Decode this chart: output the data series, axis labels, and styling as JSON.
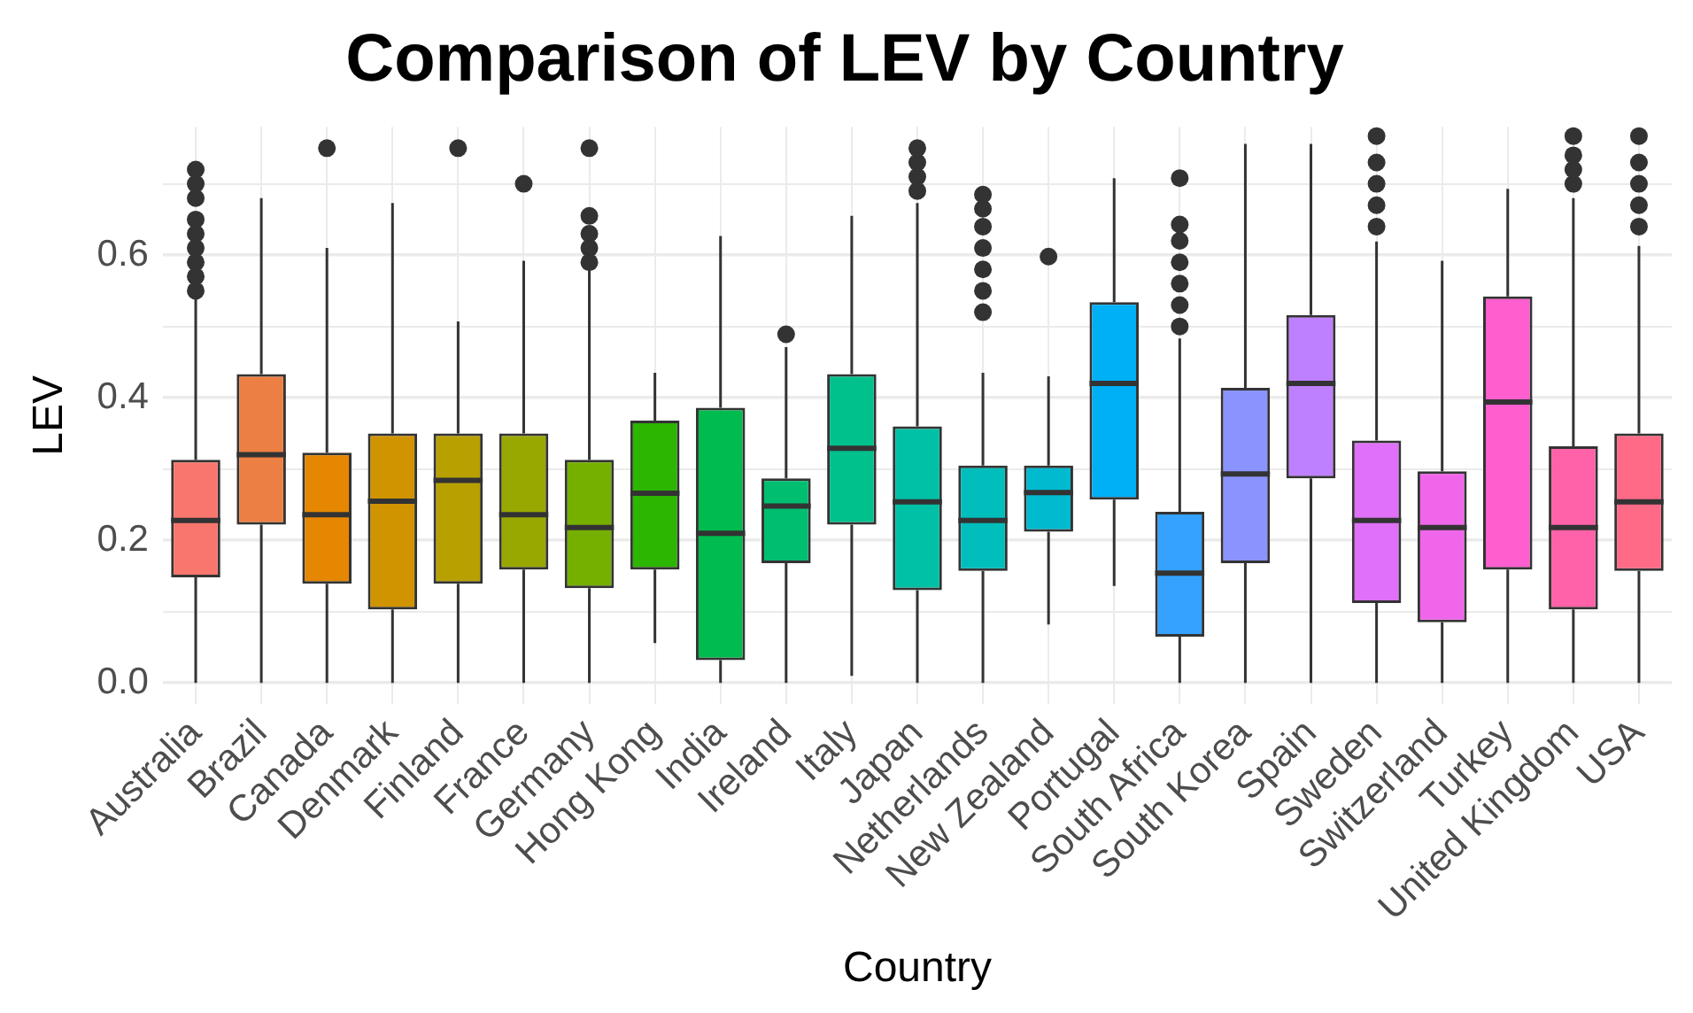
{
  "chart_data": {
    "type": "box",
    "title": "Comparison of LEV by Country",
    "xlabel": "Country",
    "ylabel": "LEV",
    "categories": [
      "Australia",
      "Brazil",
      "Canada",
      "Denmark",
      "Finland",
      "France",
      "Germany",
      "Hong Kong",
      "India",
      "Ireland",
      "Italy",
      "Japan",
      "Netherlands",
      "New Zealand",
      "Portugal",
      "South Africa",
      "South Korea",
      "Spain",
      "Sweden",
      "Switzerland",
      "Turkey",
      "United Kingdom",
      "USA"
    ],
    "colors": [
      "#F8766D",
      "#EC7F43",
      "#E58700",
      "#D09400",
      "#B7A000",
      "#99A800",
      "#75AF00",
      "#2CB600",
      "#00BB4E",
      "#00BE70",
      "#00C08C",
      "#00C0A5",
      "#00BEBC",
      "#00BAD0",
      "#00B0F6",
      "#35A2FF",
      "#8B93FF",
      "#BF80FF",
      "#E070F8",
      "#F066EA",
      "#FF5ECF",
      "#FF62A8",
      "#FF6A87"
    ],
    "boxes": [
      {
        "low": 0,
        "q1": 0.148,
        "median": 0.228,
        "q3": 0.313,
        "high": 0.54,
        "outliers": [
          0.55,
          0.57,
          0.59,
          0.61,
          0.63,
          0.65,
          0.68,
          0.7,
          0.72
        ]
      },
      {
        "low": 0,
        "q1": 0.222,
        "median": 0.32,
        "q3": 0.433,
        "high": 0.68
      },
      {
        "low": 0,
        "q1": 0.139,
        "median": 0.236,
        "q3": 0.323,
        "high": 0.61,
        "outliers": [
          0.75
        ]
      },
      {
        "low": 0,
        "q1": 0.103,
        "median": 0.255,
        "q3": 0.35,
        "high": 0.673
      },
      {
        "low": 0,
        "q1": 0.139,
        "median": 0.284,
        "q3": 0.35,
        "high": 0.507,
        "outliers": [
          0.75
        ]
      },
      {
        "low": 0,
        "q1": 0.159,
        "median": 0.236,
        "q3": 0.35,
        "high": 0.592,
        "outliers": [
          0.7
        ]
      },
      {
        "low": 0,
        "q1": 0.133,
        "median": 0.218,
        "q3": 0.313,
        "high": 0.578,
        "outliers": [
          0.59,
          0.61,
          0.63,
          0.655,
          0.75
        ]
      },
      {
        "low": 0.056,
        "q1": 0.159,
        "median": 0.266,
        "q3": 0.368,
        "high": 0.435
      },
      {
        "low": 0,
        "q1": 0.032,
        "median": 0.21,
        "q3": 0.386,
        "high": 0.627
      },
      {
        "low": 0,
        "q1": 0.168,
        "median": 0.248,
        "q3": 0.287,
        "high": 0.471,
        "outliers": [
          0.489
        ]
      },
      {
        "low": 0.01,
        "q1": 0.222,
        "median": 0.329,
        "q3": 0.433,
        "high": 0.655
      },
      {
        "low": 0,
        "q1": 0.13,
        "median": 0.254,
        "q3": 0.36,
        "high": 0.673,
        "outliers": [
          0.69,
          0.71,
          0.73,
          0.75
        ]
      },
      {
        "low": 0,
        "q1": 0.157,
        "median": 0.228,
        "q3": 0.305,
        "high": 0.435,
        "outliers": [
          0.52,
          0.55,
          0.58,
          0.61,
          0.64,
          0.665,
          0.685
        ]
      },
      {
        "low": 0.082,
        "q1": 0.212,
        "median": 0.267,
        "q3": 0.305,
        "high": 0.43,
        "outliers": [
          0.598
        ]
      },
      {
        "low": 0.136,
        "q1": 0.257,
        "median": 0.42,
        "q3": 0.534,
        "high": 0.708
      },
      {
        "low": 0,
        "q1": 0.065,
        "median": 0.154,
        "q3": 0.24,
        "high": 0.483,
        "outliers": [
          0.5,
          0.53,
          0.56,
          0.59,
          0.62,
          0.643,
          0.708
        ]
      },
      {
        "low": 0,
        "q1": 0.168,
        "median": 0.293,
        "q3": 0.414,
        "high": 0.756
      },
      {
        "low": 0,
        "q1": 0.287,
        "median": 0.42,
        "q3": 0.516,
        "high": 0.756
      },
      {
        "low": 0,
        "q1": 0.112,
        "median": 0.228,
        "q3": 0.34,
        "high": 0.619,
        "outliers": [
          0.64,
          0.67,
          0.7,
          0.73,
          0.767
        ]
      },
      {
        "low": 0,
        "q1": 0.085,
        "median": 0.218,
        "q3": 0.297,
        "high": 0.592
      },
      {
        "low": 0,
        "q1": 0.159,
        "median": 0.394,
        "q3": 0.542,
        "high": 0.693
      },
      {
        "low": 0,
        "q1": 0.103,
        "median": 0.218,
        "q3": 0.332,
        "high": 0.68,
        "outliers": [
          0.7,
          0.72,
          0.74,
          0.767
        ]
      },
      {
        "low": 0,
        "q1": 0.157,
        "median": 0.254,
        "q3": 0.35,
        "high": 0.613,
        "outliers": [
          0.64,
          0.67,
          0.7,
          0.73,
          0.767
        ]
      }
    ],
    "ylim": [
      -0.03,
      0.78
    ],
    "yticks": [
      {
        "value": 0,
        "label": "0.0"
      },
      {
        "value": 0.1,
        "label": null
      },
      {
        "value": 0.2,
        "label": "0.2"
      },
      {
        "value": 0.3,
        "label": null
      },
      {
        "value": 0.4,
        "label": "0.4"
      },
      {
        "value": 0.5,
        "label": null
      },
      {
        "value": 0.6,
        "label": "0.6"
      },
      {
        "value": 0.7,
        "label": null
      }
    ],
    "grid": true
  }
}
